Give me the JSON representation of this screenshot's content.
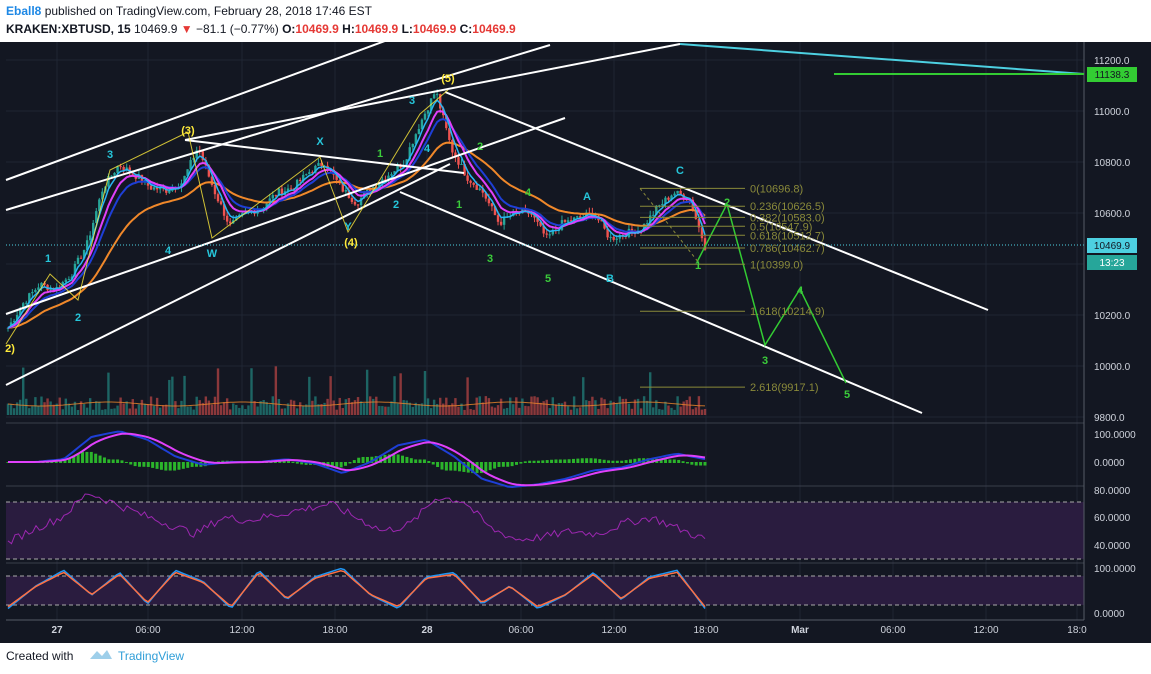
{
  "header": {
    "author": "Eball8",
    "published_text": " published on TradingView.com, February 28, 2018 17:46 EST",
    "symbol": "KRAKEN:XBTUSD, 15",
    "last": "10469.9",
    "change_arrow": "▼",
    "change": "−81.1 (−0.77%)",
    "o_label": "O:",
    "o_value": "10469.9",
    "h_label": "H:",
    "h_value": "10469.9",
    "l_label": "L:",
    "l_value": "10469.9",
    "c_label": "C:",
    "c_value": "10469.9"
  },
  "footer": {
    "created_with": "Created with",
    "brand": "TradingView"
  },
  "colors": {
    "background": "#131722",
    "up_candle": "#26a69a",
    "down_candle": "#ef5350",
    "ema_fast": "#29b6f6",
    "ema_mid": "#1e3fd6",
    "ema_magenta": "#e040fb",
    "ema_slow": "#f0882a",
    "fib": "#8a8a3a",
    "wave_green": "#7cfc00",
    "wave_yellow": "#ffeb3b",
    "wave_cyan": "#4dd0e1",
    "label_green": "#3bcc3b",
    "label_cyan": "#26c6da"
  },
  "chart_data": [
    {
      "type": "line",
      "panel": "price",
      "y_axis_ticks": [
        "11200.0",
        "11000.0",
        "10800.0",
        "10600.0",
        "10400.0",
        "10200.0",
        "10000.0",
        "9800.0"
      ],
      "ylim": [
        9800,
        11200
      ],
      "x_axis_ticks": [
        "27",
        "06:00",
        "12:00",
        "18:00",
        "28",
        "06:00",
        "12:00",
        "18:00",
        "Mar",
        "06:00",
        "12:00",
        "18:0"
      ],
      "price_label": "10469.9",
      "countdown_label": "13:23",
      "horizontal_level_label": "11138.3",
      "axis_partial_label": "10",
      "series": [
        {
          "values": [
            10150,
            10250,
            10320,
            10300,
            10360,
            10480,
            10700,
            10790,
            10750,
            10700,
            10690,
            10720,
            10860,
            10690,
            10550,
            10600,
            10620,
            10680,
            10700,
            10760,
            10800,
            10700,
            10640,
            10700,
            10750,
            10800,
            10950,
            11080,
            10850,
            10740,
            10680,
            10560,
            10600,
            10600,
            10500,
            10560,
            10580,
            10600,
            10500,
            10520,
            10540,
            10620,
            10680,
            10660,
            10470
          ]
        }
      ],
      "fib_levels": [
        {
          "ratio": "0",
          "price": "10696.8"
        },
        {
          "ratio": "0.236",
          "price": "10626.5"
        },
        {
          "ratio": "0.382",
          "price": "10583.0"
        },
        {
          "ratio": "0.5",
          "price": "10547.9"
        },
        {
          "ratio": "0.618",
          "price": "10512.7"
        },
        {
          "ratio": "0.786",
          "price": "10462.7"
        },
        {
          "ratio": "1",
          "price": "10399.0"
        },
        {
          "ratio": "1.618",
          "price": "10214.9"
        },
        {
          "ratio": "2.618",
          "price": "9917.1"
        }
      ],
      "wave_labels": [
        {
          "text": "2)",
          "color": "yellow"
        },
        {
          "text": "1",
          "color": "cyan"
        },
        {
          "text": "2",
          "color": "cyan"
        },
        {
          "text": "3",
          "color": "cyan"
        },
        {
          "text": "4",
          "color": "cyan"
        },
        {
          "text": "(3)",
          "color": "yellow"
        },
        {
          "text": "W",
          "color": "cyan"
        },
        {
          "text": "X",
          "color": "cyan"
        },
        {
          "text": "Y",
          "color": "cyan"
        },
        {
          "text": "(4)",
          "color": "yellow"
        },
        {
          "text": "1",
          "color": "green"
        },
        {
          "text": "2",
          "color": "cyan"
        },
        {
          "text": "3",
          "color": "cyan"
        },
        {
          "text": "4",
          "color": "cyan"
        },
        {
          "text": "(5)",
          "color": "yellow"
        },
        {
          "text": "2",
          "color": "green"
        },
        {
          "text": "1",
          "color": "green"
        },
        {
          "text": "3",
          "color": "green"
        },
        {
          "text": "4",
          "color": "green"
        },
        {
          "text": "5",
          "color": "green"
        },
        {
          "text": "A",
          "color": "cyan"
        },
        {
          "text": "B",
          "color": "cyan"
        },
        {
          "text": "C",
          "color": "cyan"
        },
        {
          "text": "1",
          "color": "green"
        },
        {
          "text": "2",
          "color": "green"
        },
        {
          "text": "3",
          "color": "green"
        },
        {
          "text": "4",
          "color": "green"
        },
        {
          "text": "5",
          "color": "green"
        }
      ]
    },
    {
      "type": "line",
      "panel": "oscillator",
      "y_axis_ticks": [
        "100.0000",
        "0.0000"
      ],
      "series": [
        {
          "values": [
            0,
            0,
            10,
            90,
            110,
            80,
            20,
            -10,
            0,
            0,
            10,
            -5,
            -40,
            0,
            60,
            80,
            20,
            -60,
            -90,
            -80,
            -60,
            -30,
            -20,
            10,
            30,
            10
          ]
        }
      ]
    },
    {
      "type": "line",
      "panel": "rsi",
      "y_axis_ticks": [
        "80.0000",
        "60.0000",
        "40.0000"
      ],
      "series": [
        {
          "values": [
            42,
            52,
            60,
            78,
            70,
            62,
            55,
            48,
            60,
            58,
            62,
            66,
            70,
            60,
            50,
            55,
            75,
            72,
            52,
            44,
            46,
            50,
            48,
            56,
            60,
            52,
            44
          ]
        }
      ]
    },
    {
      "type": "line",
      "panel": "stochastic",
      "y_axis_ticks": [
        "100.0000",
        "0.0000"
      ],
      "series": [
        {
          "values": [
            10,
            60,
            95,
            40,
            90,
            20,
            95,
            70,
            10,
            95,
            30,
            80,
            100,
            40,
            10,
            80,
            90,
            20,
            60,
            10,
            40,
            90,
            30,
            80,
            95,
            10
          ]
        }
      ]
    }
  ]
}
